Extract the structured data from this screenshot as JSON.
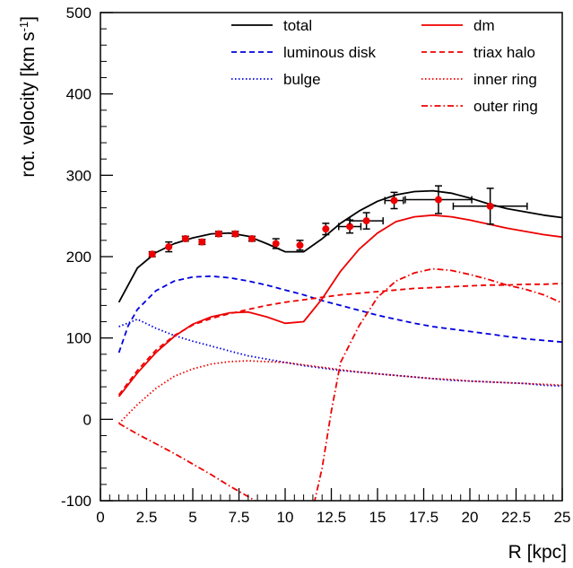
{
  "chart_data": {
    "type": "line",
    "title": "",
    "xlabel": "R [kpc]",
    "ylabel": "rot. velocity [km s-1]",
    "ylabel_main": "rot. velocity [km s",
    "ylabel_sup": "-1",
    "ylabel_close": "]",
    "xlim": [
      0,
      25
    ],
    "ylim": [
      -100,
      500
    ],
    "x_ticks": [
      0,
      2.5,
      5,
      7.5,
      10,
      12.5,
      15,
      17.5,
      20,
      22.5,
      25
    ],
    "x_tick_labels": [
      "0",
      "2.5",
      "5",
      "7.5",
      "10",
      "12.5",
      "15",
      "17.5",
      "20",
      "22.5",
      "25"
    ],
    "y_ticks": [
      -100,
      0,
      100,
      200,
      300,
      400,
      500
    ],
    "y_tick_labels": [
      "-100",
      "0",
      "100",
      "200",
      "300",
      "400",
      "500"
    ],
    "grid": false,
    "legend_position": "top-right",
    "series": [
      {
        "name": "total",
        "color": "#000000",
        "dash": "solid",
        "x": [
          1,
          2,
          3,
          4,
          5,
          6,
          7,
          8,
          9,
          10,
          11,
          12,
          13,
          14,
          15,
          16,
          17,
          18,
          19,
          20,
          21,
          22,
          23,
          24,
          25
        ],
        "y": [
          144,
          186,
          205,
          216,
          223,
          228,
          229,
          225,
          216,
          206,
          206,
          222,
          241,
          256,
          268,
          276,
          280,
          281,
          278,
          272,
          265,
          259,
          255,
          251,
          248
        ]
      },
      {
        "name": "luminous disk",
        "color": "#0000dd",
        "dash": "dashed",
        "x": [
          1,
          1.5,
          2,
          3,
          4,
          5,
          6,
          7,
          8,
          9,
          10,
          11,
          12,
          13,
          14,
          15,
          16,
          17,
          18,
          19,
          20,
          21,
          22,
          23,
          24,
          25
        ],
        "y": [
          82,
          115,
          135,
          158,
          170,
          175,
          176,
          174,
          170,
          165,
          159,
          153,
          146,
          140,
          134,
          128,
          123,
          118,
          114,
          111,
          108,
          105,
          102,
          99,
          97,
          95
        ]
      },
      {
        "name": "bulge",
        "color": "#0000dd",
        "dash": "dotted",
        "x": [
          1,
          2,
          3,
          4,
          5,
          6,
          7,
          8,
          9,
          10,
          11,
          12,
          13,
          14,
          15,
          16,
          17,
          18,
          19,
          20,
          21,
          22,
          23,
          24,
          25
        ],
        "y": [
          114,
          123,
          112,
          103,
          96,
          90,
          84,
          78,
          74,
          70,
          66,
          63,
          60,
          58,
          56,
          54,
          52,
          50,
          48,
          47,
          46,
          45,
          44,
          42,
          41
        ]
      },
      {
        "name": "dm",
        "color": "#ee0000",
        "dash": "solid",
        "x": [
          1,
          2,
          3,
          4,
          5,
          6,
          7,
          8,
          9,
          10,
          11,
          12,
          13,
          14,
          15,
          16,
          17,
          18,
          19,
          20,
          21,
          22,
          23,
          24,
          25
        ],
        "y": [
          28,
          57,
          82,
          102,
          117,
          126,
          131,
          132,
          126,
          118,
          120,
          148,
          182,
          209,
          229,
          243,
          249,
          251,
          249,
          245,
          240,
          235,
          231,
          227,
          224
        ]
      },
      {
        "name": "triax halo",
        "color": "#ee0000",
        "dash": "dashed",
        "x": [
          1,
          2,
          3,
          4,
          5,
          6,
          7,
          8,
          9,
          10,
          11,
          12,
          13,
          14,
          15,
          16,
          17,
          18,
          19,
          20,
          21,
          22,
          23,
          24,
          25
        ],
        "y": [
          30,
          60,
          85,
          103,
          116,
          124,
          130,
          135,
          140,
          144,
          147,
          150,
          153,
          155,
          157,
          159,
          161,
          162,
          163,
          164,
          165,
          165,
          166,
          166,
          167
        ]
      },
      {
        "name": "inner ring",
        "color": "#ee0000",
        "dash": "dotted",
        "x": [
          1,
          2,
          3,
          4,
          5,
          6,
          7,
          8,
          9,
          10,
          11,
          12,
          13,
          14,
          15,
          16,
          17,
          18,
          19,
          20,
          21,
          22,
          23,
          24,
          25
        ],
        "y": [
          -5,
          18,
          38,
          53,
          62,
          68,
          71,
          72,
          71,
          70,
          67,
          64,
          61,
          58,
          56,
          54,
          52,
          50,
          49,
          47,
          46,
          45,
          44,
          43,
          42
        ]
      },
      {
        "name": "outer ring",
        "color": "#ee0000",
        "dash": "dashdot",
        "x": [
          1,
          2,
          3,
          4,
          5,
          6,
          7,
          8,
          9,
          10,
          11,
          11.5,
          12,
          12.5,
          13,
          14,
          15,
          16,
          17,
          18,
          19,
          20,
          21,
          22,
          23,
          24,
          25
        ],
        "y": [
          -5,
          -18,
          -30,
          -42,
          -55,
          -68,
          -82,
          -95,
          -108,
          -125,
          -140,
          -110,
          -60,
          10,
          70,
          115,
          150,
          170,
          180,
          185,
          183,
          178,
          172,
          165,
          160,
          153,
          143
        ]
      }
    ],
    "data_points": {
      "color": "#ee0000",
      "x": [
        2.8,
        3.7,
        4.6,
        5.5,
        6.4,
        7.3,
        8.2,
        9.5,
        10.8,
        12.2,
        13.5,
        14.4,
        15.9,
        18.3,
        21.1
      ],
      "y": [
        203,
        212,
        222,
        218,
        228,
        228,
        222,
        216,
        214,
        234,
        237,
        244,
        269,
        270,
        262
      ],
      "y_err": [
        3,
        6,
        3,
        3,
        3,
        3,
        3,
        6,
        6,
        7,
        8,
        10,
        10,
        17,
        22
      ],
      "x_err": [
        0,
        0,
        0,
        0,
        0,
        0,
        0,
        0,
        0,
        0,
        0.6,
        0.9,
        0.5,
        1.8,
        2.0
      ]
    }
  }
}
